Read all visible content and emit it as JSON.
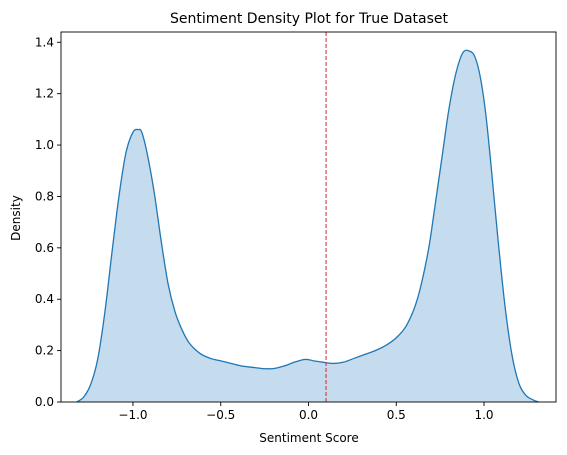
{
  "chart_data": {
    "type": "area",
    "title": "Sentiment Density Plot for True Dataset",
    "xlabel": "Sentiment Score",
    "ylabel": "Density",
    "xlim": [
      -1.41,
      1.41
    ],
    "ylim": [
      0,
      1.44
    ],
    "xticks": [
      -1.0,
      -0.5,
      0.0,
      0.5,
      1.0
    ],
    "xtick_labels": [
      "−1.0",
      "−0.5",
      "0.0",
      "0.5",
      "1.0"
    ],
    "yticks": [
      0.0,
      0.2,
      0.4,
      0.6,
      0.8,
      1.0,
      1.2,
      1.4
    ],
    "ytick_labels": [
      "0.0",
      "0.2",
      "0.4",
      "0.6",
      "0.8",
      "1.0",
      "1.2",
      "1.4"
    ],
    "grid": false,
    "series": [
      {
        "x": [
          -1.32,
          -1.28,
          -1.24,
          -1.2,
          -1.16,
          -1.12,
          -1.08,
          -1.04,
          -1.0,
          -0.97,
          -0.95,
          -0.92,
          -0.88,
          -0.84,
          -0.8,
          -0.76,
          -0.72,
          -0.68,
          -0.62,
          -0.56,
          -0.5,
          -0.44,
          -0.38,
          -0.32,
          -0.26,
          -0.2,
          -0.14,
          -0.08,
          -0.03,
          0.0,
          0.03,
          0.08,
          0.14,
          0.2,
          0.26,
          0.32,
          0.38,
          0.44,
          0.5,
          0.56,
          0.62,
          0.68,
          0.72,
          0.76,
          0.8,
          0.84,
          0.88,
          0.92,
          0.95,
          0.98,
          1.01,
          1.04,
          1.08,
          1.12,
          1.16,
          1.2,
          1.24,
          1.28,
          1.31
        ],
        "y": [
          0.0,
          0.02,
          0.07,
          0.17,
          0.35,
          0.58,
          0.8,
          0.97,
          1.05,
          1.06,
          1.05,
          0.97,
          0.82,
          0.63,
          0.46,
          0.35,
          0.28,
          0.23,
          0.19,
          0.17,
          0.16,
          0.15,
          0.14,
          0.135,
          0.13,
          0.13,
          0.14,
          0.155,
          0.165,
          0.165,
          0.16,
          0.155,
          0.15,
          0.155,
          0.17,
          0.185,
          0.2,
          0.22,
          0.25,
          0.3,
          0.4,
          0.58,
          0.76,
          0.95,
          1.14,
          1.28,
          1.36,
          1.365,
          1.34,
          1.26,
          1.12,
          0.92,
          0.63,
          0.37,
          0.18,
          0.07,
          0.025,
          0.008,
          0.0
        ],
        "color": "#1f77b4",
        "fill_color": "#c5dbee"
      }
    ],
    "vline": {
      "x": 0.1,
      "color": "#d62728",
      "style": "dashed"
    }
  }
}
